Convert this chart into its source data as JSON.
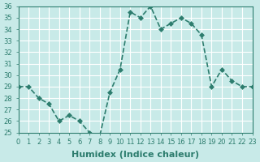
{
  "x": [
    0,
    1,
    2,
    3,
    4,
    5,
    6,
    7,
    8,
    9,
    10,
    11,
    12,
    13,
    14,
    15,
    16,
    17,
    18,
    19,
    20,
    21,
    22,
    23
  ],
  "y": [
    29,
    29,
    28,
    27.5,
    26,
    26.5,
    26,
    25,
    24.7,
    28.5,
    30.5,
    35.5,
    35,
    36,
    34,
    34.5,
    35,
    34.5,
    33.5,
    29,
    30.5,
    29.5,
    29,
    29
  ],
  "line_color": "#2d7d6e",
  "marker": "D",
  "marker_size": 3,
  "bg_color": "#c8eae8",
  "grid_color": "#ffffff",
  "xlabel": "Humidex (Indice chaleur)",
  "ylim": [
    25,
    36
  ],
  "xlim": [
    0,
    23
  ],
  "yticks": [
    25,
    26,
    27,
    28,
    29,
    30,
    31,
    32,
    33,
    34,
    35,
    36
  ],
  "xticks": [
    0,
    1,
    2,
    3,
    4,
    5,
    6,
    7,
    8,
    9,
    10,
    11,
    12,
    13,
    14,
    15,
    16,
    17,
    18,
    19,
    20,
    21,
    22,
    23
  ],
  "tick_color": "#2d7d6e",
  "label_fontsize": 7,
  "xlabel_fontsize": 8,
  "tick_fontsize": 6,
  "linewidth": 1.2
}
